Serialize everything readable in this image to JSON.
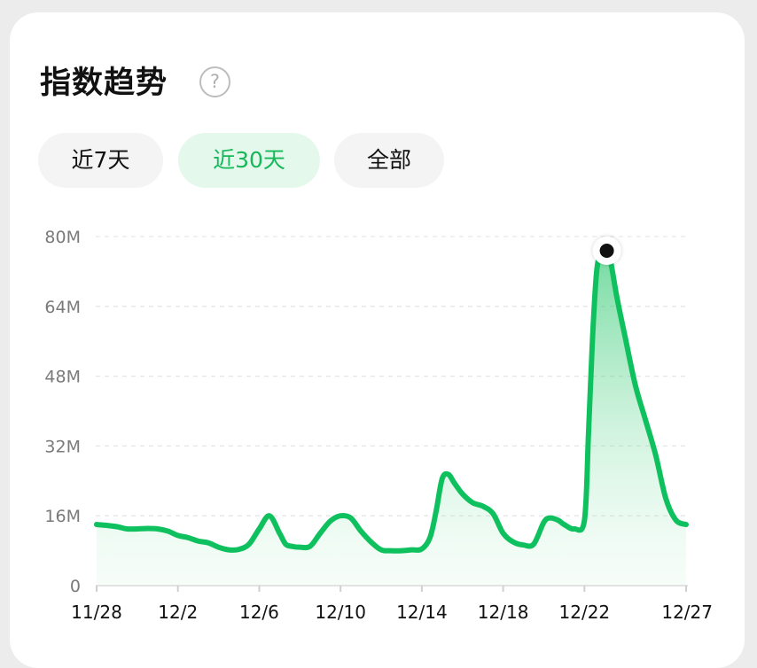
{
  "header": {
    "title": "指数趋势",
    "help_icon": "?"
  },
  "tabs": [
    {
      "label": "近7天",
      "active": false
    },
    {
      "label": "近30天",
      "active": true
    },
    {
      "label": "全部",
      "active": false
    }
  ],
  "colors": {
    "accent": "#16b85a",
    "line": "#0fc15e",
    "peak_marker": "#111111"
  },
  "chart_data": {
    "type": "area",
    "title": "",
    "xlabel": "",
    "ylabel": "",
    "ylim": [
      0,
      80
    ],
    "y_unit": "M",
    "y_ticks": [
      "0",
      "16M",
      "32M",
      "48M",
      "64M",
      "80M"
    ],
    "y_tick_values": [
      0,
      16,
      32,
      48,
      64,
      80
    ],
    "x_ticks": [
      "11/28",
      "12/2",
      "12/6",
      "12/10",
      "12/14",
      "12/18",
      "12/22",
      "12/27"
    ],
    "x_tick_days": [
      0,
      4,
      8,
      12,
      16,
      20,
      24,
      29
    ],
    "grid": true,
    "highlight_day": 25.1,
    "series": [
      {
        "x": [
          0,
          0.5,
          1,
          1.5,
          2,
          2.5,
          3,
          3.5,
          4,
          4.5,
          5,
          5.5,
          6,
          6.5,
          7,
          7.5,
          8,
          8.5,
          9,
          9.3,
          9.6,
          10,
          10.5,
          11,
          11.5,
          12,
          12.5,
          13,
          13.5,
          14,
          14.5,
          15,
          15.5,
          16,
          16.4,
          16.7,
          17,
          17.3,
          17.6,
          18,
          18.5,
          19,
          19.5,
          20,
          20.5,
          21,
          21.5,
          22,
          22.3,
          22.7,
          23,
          23.5,
          24,
          24.2,
          24.4,
          24.6,
          24.8,
          25,
          25.1,
          25.3,
          25.6,
          26,
          26.5,
          27,
          27.5,
          28,
          28.5,
          29
        ],
        "y": [
          14,
          13.8,
          13.5,
          13,
          13,
          13.1,
          13,
          12.5,
          11.5,
          11,
          10.2,
          9.8,
          8.8,
          8.2,
          8.3,
          9.5,
          13,
          16,
          12,
          9.5,
          9,
          8.8,
          9,
          12,
          14.8,
          16,
          15.5,
          12.5,
          10,
          8.2,
          8,
          8,
          8.2,
          8.4,
          11,
          17,
          24.5,
          25.5,
          23.5,
          21,
          19,
          18.2,
          16.5,
          12,
          10,
          9.3,
          9.5,
          14.5,
          15.5,
          15,
          14,
          13,
          15,
          35,
          57,
          72,
          76,
          77,
          77.5,
          74,
          66,
          57,
          46,
          38,
          30,
          20,
          15,
          14
        ]
      }
    ]
  }
}
